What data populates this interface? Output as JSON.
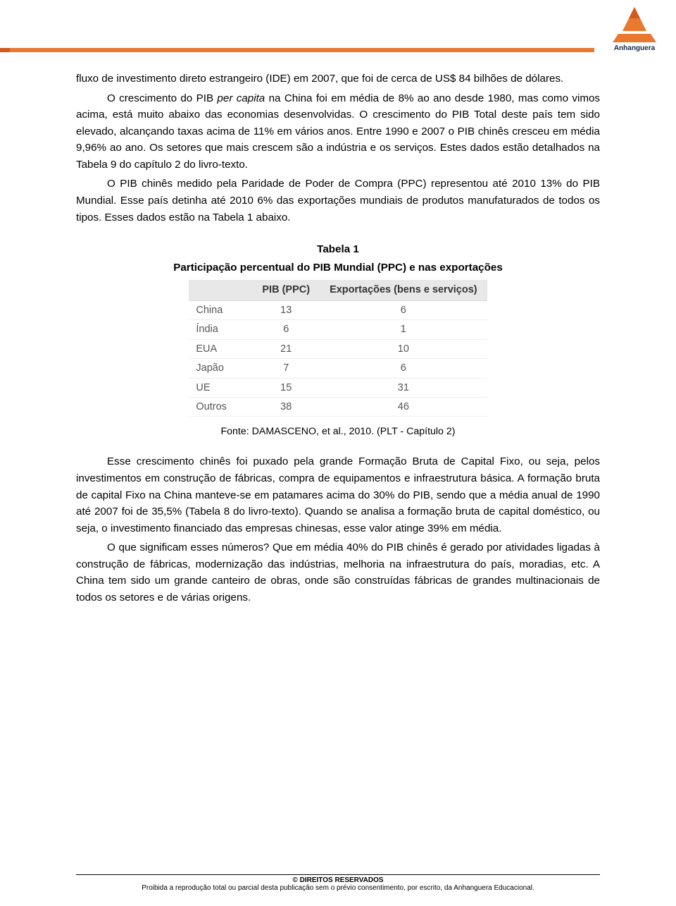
{
  "logo": {
    "brand_name": "Anhanguera",
    "colors": {
      "orange": "#e8792f",
      "orange_dark": "#d3581c",
      "navy": "#1a2a4a"
    }
  },
  "paragraphs": {
    "p1": "fluxo de investimento direto estrangeiro (IDE) em 2007, que foi de cerca de US$ 84 bilhões de dólares.",
    "p2_a": "O crescimento do PIB ",
    "p2_b_italic": "per capita",
    "p2_c": " na China foi em média de 8% ao ano desde 1980, mas como vimos acima, está muito abaixo das economias desenvolvidas. O crescimento do PIB Total deste país tem sido elevado, alcançando taxas acima de 11% em vários anos. Entre 1990 e 2007 o PIB chinês cresceu em média 9,96% ao ano. Os setores que mais crescem são a indústria e os serviços. Estes dados estão detalhados na Tabela 9 do capítulo 2 do livro-texto.",
    "p3": "O PIB chinês medido pela Paridade de Poder de Compra (PPC) representou até 2010 13% do PIB Mundial. Esse país detinha até 2010 6% das exportações mundiais de produtos manufaturados de todos os tipos. Esses dados estão na Tabela 1 abaixo.",
    "p4": "Esse crescimento chinês foi puxado pela grande Formação Bruta de Capital Fixo, ou seja, pelos investimentos em construção de fábricas, compra de equipamentos e infraestrutura básica. A formação bruta de capital Fixo na China manteve-se em patamares acima do 30% do PIB, sendo que a média anual de 1990 até 2007 foi de 35,5% (Tabela 8 do livro-texto). Quando se analisa a formação bruta de capital doméstico, ou seja, o investimento financiado das empresas chinesas, esse valor atinge 39% em média.",
    "p5": "O que significam esses números? Que em média 40% do PIB chinês é gerado por atividades ligadas à construção de fábricas, modernização das indústrias, melhoria na infraestrutura do país, moradias, etc. A China tem sido um grande canteiro de obras, onde são construídas fábricas de grandes multinacionais de todos os setores e de várias origens."
  },
  "table": {
    "title": "Tabela 1",
    "subtitle": "Participação percentual do PIB Mundial (PPC) e nas exportações",
    "columns": [
      "",
      "PIB (PPC)",
      "Exportações (bens e serviços)"
    ],
    "rows": [
      [
        "China",
        "13",
        "6"
      ],
      [
        "Índia",
        "6",
        "1"
      ],
      [
        "EUA",
        "21",
        "10"
      ],
      [
        "Japão",
        "7",
        "6"
      ],
      [
        "UE",
        "15",
        "31"
      ],
      [
        "Outros",
        "38",
        "46"
      ]
    ],
    "source": "Fonte: DAMASCENO, et al., 2010. (PLT - Capítulo 2)"
  },
  "footer": {
    "reserved": "© DIREITOS RESERVADOS",
    "line2": "Proibida a reprodução total ou parcial desta publicação sem o prévio consentimento, por escrito, da Anhanguera Educacional."
  }
}
